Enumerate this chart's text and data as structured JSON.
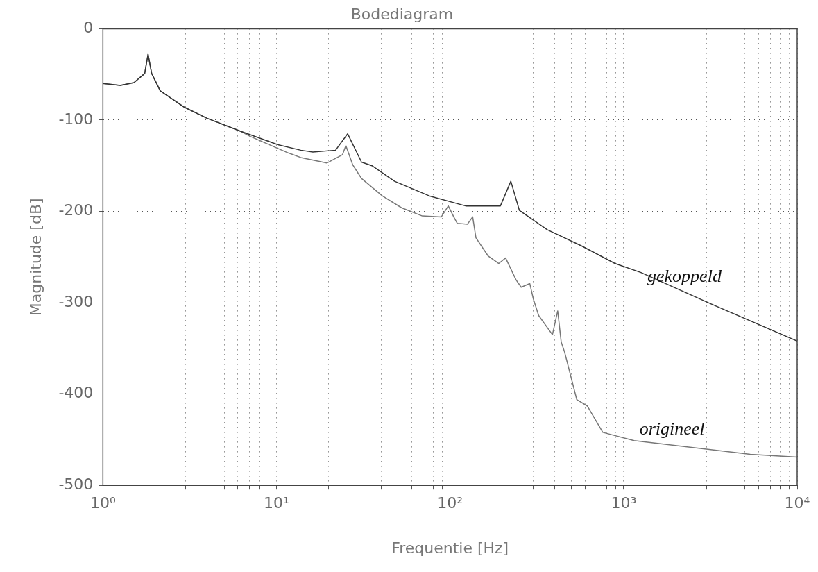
{
  "chart_data": {
    "type": "line",
    "title": "Bodediagram",
    "xlabel": "Frequentie [Hz]",
    "ylabel": "Magnitude [dB]",
    "log": "x",
    "grid": true,
    "legend": false,
    "marker": "none",
    "line_style": "solid",
    "xlim": [
      1,
      10000
    ],
    "ylim": [
      -500,
      0
    ],
    "xticks": [
      {
        "value": 1,
        "label": "10⁰"
      },
      {
        "value": 2,
        "label": null
      },
      {
        "value": 3,
        "label": null
      },
      {
        "value": 4,
        "label": null
      },
      {
        "value": 5,
        "label": null
      },
      {
        "value": 6,
        "label": null
      },
      {
        "value": 7,
        "label": null
      },
      {
        "value": 8,
        "label": null
      },
      {
        "value": 9,
        "label": null
      },
      {
        "value": 10,
        "label": "10¹"
      },
      {
        "value": 20,
        "label": null
      },
      {
        "value": 30,
        "label": null
      },
      {
        "value": 40,
        "label": null
      },
      {
        "value": 50,
        "label": null
      },
      {
        "value": 60,
        "label": null
      },
      {
        "value": 70,
        "label": null
      },
      {
        "value": 80,
        "label": null
      },
      {
        "value": 90,
        "label": null
      },
      {
        "value": 100,
        "label": "10²"
      },
      {
        "value": 200,
        "label": null
      },
      {
        "value": 300,
        "label": null
      },
      {
        "value": 400,
        "label": null
      },
      {
        "value": 500,
        "label": null
      },
      {
        "value": 600,
        "label": null
      },
      {
        "value": 700,
        "label": null
      },
      {
        "value": 800,
        "label": null
      },
      {
        "value": 900,
        "label": null
      },
      {
        "value": 1000,
        "label": "10³"
      },
      {
        "value": 2000,
        "label": null
      },
      {
        "value": 3000,
        "label": null
      },
      {
        "value": 4000,
        "label": null
      },
      {
        "value": 5000,
        "label": null
      },
      {
        "value": 6000,
        "label": null
      },
      {
        "value": 7000,
        "label": null
      },
      {
        "value": 8000,
        "label": null
      },
      {
        "value": 9000,
        "label": null
      },
      {
        "value": 10000,
        "label": "10⁴"
      }
    ],
    "yticks": [
      -500,
      -400,
      -300,
      -200,
      -100,
      0
    ],
    "series": [
      {
        "color": "#333333",
        "x": [
          1,
          1.26,
          1.51,
          1.74,
          1.82,
          1.91,
          2.14,
          2.95,
          3.98,
          6.17,
          10.2,
          13.8,
          16.2,
          21.9,
          25.7,
          30.9,
          35.5,
          47.9,
          75.9,
          123,
          195,
          224,
          251,
          363,
          575,
          891,
          1260,
          3160,
          10000
        ],
        "values": [
          -60,
          -62,
          -59,
          -49,
          -28,
          -49,
          -68,
          -86,
          -98,
          -112,
          -127,
          -133,
          -135,
          -133,
          -115,
          -146,
          -150,
          -167,
          -183,
          -194,
          -194,
          -167,
          -199,
          -220,
          -238,
          -257,
          -267,
          -301,
          -342
        ]
      },
      {
        "color": "#777777",
        "x": [
          1,
          1.26,
          1.51,
          1.74,
          1.82,
          1.91,
          2.14,
          2.95,
          3.98,
          6.17,
          7.08,
          11.7,
          13.8,
          19.5,
          24.0,
          25.1,
          27.5,
          30.9,
          40.7,
          52.5,
          69.2,
          89.1,
          97.7,
          105,
          110,
          126,
          135,
          141,
          166,
          191,
          209,
          240,
          257,
          288,
          302,
          324,
          389,
          417,
          437,
          457,
          537,
          617,
          759,
          1150,
          5370,
          10000
        ],
        "values": [
          -60,
          -62,
          -59,
          -49,
          -28,
          -49,
          -68,
          -86,
          -98,
          -112,
          -118,
          -136,
          -141,
          -147,
          -138,
          -128,
          -149,
          -164,
          -183,
          -196,
          -205,
          -206,
          -194,
          -206,
          -213,
          -214,
          -206,
          -229,
          -249,
          -257,
          -251,
          -275,
          -283,
          -279,
          -296,
          -314,
          -335,
          -309,
          -343,
          -354,
          -406,
          -413,
          -442,
          -451,
          -466,
          -469
        ]
      }
    ],
    "annotations": [
      {
        "text": "gekoppeld",
        "x": 2240,
        "y": -285
      },
      {
        "text": "origineel",
        "x": 1900,
        "y": -452
      }
    ]
  }
}
